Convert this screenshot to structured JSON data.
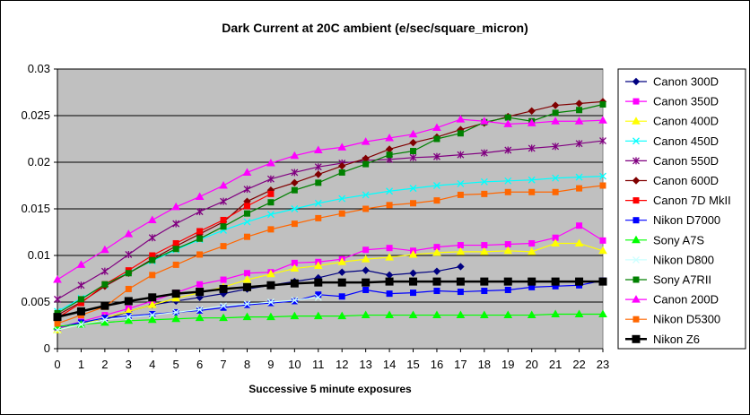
{
  "chart_data": {
    "type": "line",
    "title": "Dark Current at 20C ambient (e/sec/square_micron)",
    "xlabel": "Successive 5 minute exposures",
    "ylabel": "",
    "xlim": [
      0,
      23
    ],
    "ylim": [
      0,
      0.03
    ],
    "x_ticks": [
      "0",
      "1",
      "2",
      "3",
      "4",
      "5",
      "6",
      "7",
      "8",
      "9",
      "10",
      "11",
      "12",
      "13",
      "14",
      "15",
      "16",
      "17",
      "18",
      "19",
      "20",
      "21",
      "22",
      "23"
    ],
    "y_ticks": [
      "0",
      "0.005",
      "0.01",
      "0.015",
      "0.02",
      "0.025",
      "0.03"
    ],
    "legend_position": "right",
    "plot_background": "#c0c0c0",
    "series": [
      {
        "name": "Canon 300D",
        "color": "#000080",
        "marker": "diamond",
        "values": [
          0.0022,
          0.0028,
          0.0031,
          0.004,
          0.0047,
          0.0051,
          0.0055,
          0.0059,
          0.0064,
          0.0068,
          0.0072,
          0.0076,
          0.0082,
          0.0084,
          0.0079,
          0.0081,
          0.0083,
          0.0088
        ]
      },
      {
        "name": "Canon 350D",
        "color": "#ff00ff",
        "marker": "square",
        "values": [
          0.0022,
          0.0029,
          0.0036,
          0.0043,
          0.0051,
          0.006,
          0.0069,
          0.0074,
          0.0081,
          0.0082,
          0.0092,
          0.0093,
          0.0096,
          0.0106,
          0.0108,
          0.0105,
          0.0109,
          0.0111,
          0.0111,
          0.0112,
          0.0113,
          0.0119,
          0.0132,
          0.0116
        ]
      },
      {
        "name": "Canon 400D",
        "color": "#ffff00",
        "marker": "triangle",
        "values": [
          0.002,
          0.0026,
          0.0033,
          0.004,
          0.0047,
          0.0054,
          0.006,
          0.0066,
          0.0074,
          0.008,
          0.0086,
          0.0089,
          0.0093,
          0.0096,
          0.0098,
          0.0101,
          0.0103,
          0.0104,
          0.0104,
          0.0105,
          0.0104,
          0.0113,
          0.0113,
          0.0105
        ]
      },
      {
        "name": "Canon 450D",
        "color": "#00ffff",
        "marker": "x",
        "values": [
          0.004,
          0.0054,
          0.0068,
          0.0082,
          0.0094,
          0.0106,
          0.0117,
          0.0127,
          0.0136,
          0.0144,
          0.015,
          0.0156,
          0.0161,
          0.0165,
          0.0169,
          0.0172,
          0.0175,
          0.0177,
          0.0179,
          0.018,
          0.0181,
          0.0183,
          0.0184,
          0.0185
        ]
      },
      {
        "name": "Canon 550D",
        "color": "#800080",
        "marker": "star",
        "values": [
          0.0053,
          0.0068,
          0.0083,
          0.0101,
          0.0119,
          0.0134,
          0.0147,
          0.0158,
          0.0171,
          0.0182,
          0.0189,
          0.0195,
          0.0199,
          0.0202,
          0.0203,
          0.0205,
          0.0206,
          0.0208,
          0.021,
          0.0213,
          0.0215,
          0.0217,
          0.022,
          0.0223
        ]
      },
      {
        "name": "Canon 600D",
        "color": "#800000",
        "marker": "diamond",
        "values": [
          0.0036,
          0.005,
          0.0067,
          0.0081,
          0.0096,
          0.011,
          0.0123,
          0.0136,
          0.0158,
          0.017,
          0.0178,
          0.0187,
          0.0196,
          0.0204,
          0.0214,
          0.0221,
          0.0227,
          0.0235,
          0.0242,
          0.0249,
          0.0255,
          0.0261,
          0.0263,
          0.0265
        ]
      },
      {
        "name": "Canon 7D MkII",
        "color": "#ff0000",
        "marker": "square",
        "values": [
          0.0033,
          0.0049,
          0.0069,
          0.0084,
          0.01,
          0.0113,
          0.0126,
          0.0138,
          0.0153,
          0.0166
        ]
      },
      {
        "name": "Nikon D7000",
        "color": "#0000ff",
        "marker": "square",
        "values": [
          0.0023,
          0.0028,
          0.0033,
          0.0035,
          0.0037,
          0.0039,
          0.0041,
          0.0044,
          0.0047,
          0.0049,
          0.0051,
          0.0058,
          0.0056,
          0.0063,
          0.0059,
          0.006,
          0.0062,
          0.0061,
          0.0062,
          0.0063,
          0.0066,
          0.0067,
          0.0068,
          0.0073
        ]
      },
      {
        "name": "Sony A7S",
        "color": "#00ff00",
        "marker": "triangle",
        "values": [
          0.0024,
          0.0026,
          0.0028,
          0.003,
          0.0031,
          0.0032,
          0.0033,
          0.0033,
          0.0034,
          0.0034,
          0.0035,
          0.0035,
          0.0035,
          0.0036,
          0.0036,
          0.0036,
          0.0036,
          0.0036,
          0.0036,
          0.0036,
          0.0036,
          0.0037,
          0.0037,
          0.0037
        ]
      },
      {
        "name": "Nikon D800",
        "color": "#ccffff",
        "marker": "x",
        "values": [
          0.002,
          0.0026,
          0.0031,
          0.0034,
          0.0036,
          0.0039,
          0.0042,
          0.0046,
          0.0048,
          0.005,
          0.0052,
          0.0055
        ]
      },
      {
        "name": "Sony A7RII",
        "color": "#008000",
        "marker": "square",
        "values": [
          0.0038,
          0.0053,
          0.0069,
          0.0081,
          0.0095,
          0.0107,
          0.0118,
          0.0131,
          0.0145,
          0.0157,
          0.017,
          0.0178,
          0.0189,
          0.0198,
          0.0208,
          0.0212,
          0.0225,
          0.0231,
          0.0243,
          0.0248,
          0.0244,
          0.0253,
          0.0256,
          0.0262
        ]
      },
      {
        "name": "Canon 200D",
        "color": "#ff00ff",
        "marker": "triangle",
        "values": [
          0.0074,
          0.009,
          0.0106,
          0.0123,
          0.0138,
          0.0152,
          0.0163,
          0.0175,
          0.0189,
          0.0199,
          0.0207,
          0.0213,
          0.0216,
          0.0222,
          0.0226,
          0.023,
          0.0237,
          0.0246,
          0.0244,
          0.0241,
          0.0242,
          0.0244,
          0.0244,
          0.0245
        ]
      },
      {
        "name": "Nikon D5300",
        "color": "#ff6600",
        "marker": "square",
        "values": [
          0.0027,
          0.0036,
          0.0045,
          0.0064,
          0.0079,
          0.009,
          0.0101,
          0.011,
          0.012,
          0.0128,
          0.0134,
          0.014,
          0.0145,
          0.015,
          0.0154,
          0.0156,
          0.0159,
          0.0165,
          0.0166,
          0.0168,
          0.0168,
          0.0168,
          0.0172,
          0.0175
        ]
      },
      {
        "name": "Nikon Z6",
        "color": "#000000",
        "marker": "square-big",
        "values": [
          0.0034,
          0.004,
          0.0046,
          0.0051,
          0.0055,
          0.0059,
          0.0061,
          0.0064,
          0.0066,
          0.0068,
          0.007,
          0.0071,
          0.0071,
          0.0071,
          0.0072,
          0.0072,
          0.0072,
          0.0072,
          0.0072,
          0.0072,
          0.0072,
          0.0072,
          0.0072,
          0.0072
        ]
      }
    ]
  }
}
